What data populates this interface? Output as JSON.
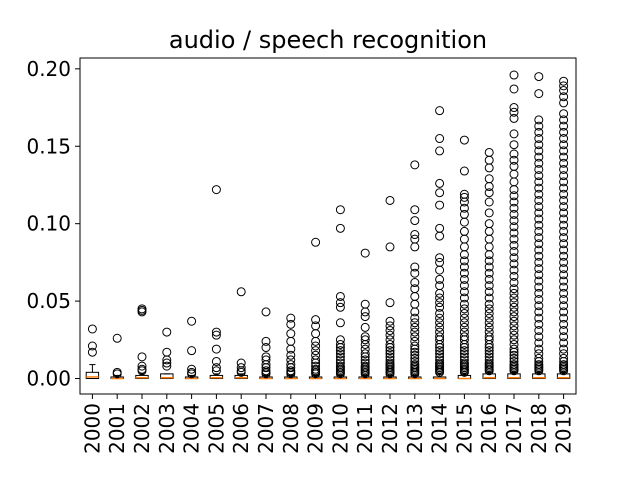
{
  "chart_data": {
    "type": "boxplot",
    "title": "audio / speech recognition",
    "xlabel": "",
    "ylabel": "",
    "ylim": [
      -0.01,
      0.207
    ],
    "y_ticks": [
      0.0,
      0.05,
      0.1,
      0.15,
      0.2
    ],
    "y_tick_labels": [
      "0.00",
      "0.05",
      "0.10",
      "0.15",
      "0.20"
    ],
    "categories": [
      "2000",
      "2001",
      "2002",
      "2003",
      "2004",
      "2005",
      "2006",
      "2007",
      "2008",
      "2009",
      "2010",
      "2011",
      "2012",
      "2013",
      "2014",
      "2015",
      "2016",
      "2017",
      "2018",
      "2019"
    ],
    "median_color": "#ff7f0e",
    "box_color": "#000000",
    "grid": false,
    "boxes": [
      {
        "category": "2000",
        "q1": 0.0,
        "median": 0.001,
        "q3": 0.004,
        "whisker_low": 0.0,
        "whisker_high": 0.009,
        "outliers": [
          0.032,
          0.021,
          0.017
        ]
      },
      {
        "category": "2001",
        "q1": 0.0,
        "median": 0.0,
        "q3": 0.001,
        "whisker_low": 0.0,
        "whisker_high": 0.002,
        "outliers": [
          0.026,
          0.004,
          0.003
        ]
      },
      {
        "category": "2002",
        "q1": 0.0,
        "median": 0.0005,
        "q3": 0.002,
        "whisker_low": 0.0,
        "whisker_high": 0.003,
        "outliers": [
          0.045,
          0.044,
          0.043,
          0.014,
          0.008,
          0.006,
          0.005
        ]
      },
      {
        "category": "2003",
        "q1": 0.0,
        "median": 0.0005,
        "q3": 0.003,
        "whisker_low": 0.0,
        "whisker_high": 0.003,
        "outliers": [
          0.03,
          0.017,
          0.012,
          0.01,
          0.008
        ]
      },
      {
        "category": "2004",
        "q1": 0.0,
        "median": 0.0,
        "q3": 0.001,
        "whisker_low": 0.0,
        "whisker_high": 0.002,
        "outliers": [
          0.037,
          0.018,
          0.006,
          0.004,
          0.003
        ]
      },
      {
        "category": "2005",
        "q1": 0.0,
        "median": 0.0005,
        "q3": 0.002,
        "whisker_low": 0.0,
        "whisker_high": 0.003,
        "outliers": [
          0.122,
          0.03,
          0.028,
          0.019,
          0.011,
          0.007,
          0.005
        ]
      },
      {
        "category": "2006",
        "q1": 0.0,
        "median": 0.0005,
        "q3": 0.002,
        "whisker_low": 0.0,
        "whisker_high": 0.003,
        "outliers": [
          0.056,
          0.01,
          0.007,
          0.005,
          0.004
        ]
      },
      {
        "category": "2007",
        "q1": 0.0,
        "median": 0.0,
        "q3": 0.001,
        "whisker_low": 0.0,
        "whisker_high": 0.002,
        "outliers": [
          0.043,
          0.024,
          0.02,
          0.014,
          0.012,
          0.009,
          0.007,
          0.005,
          0.004,
          0.003
        ]
      },
      {
        "category": "2008",
        "q1": 0.0,
        "median": 0.0,
        "q3": 0.001,
        "whisker_low": 0.0,
        "whisker_high": 0.002,
        "outliers": [
          0.039,
          0.035,
          0.029,
          0.024,
          0.019,
          0.015,
          0.012,
          0.009,
          0.007,
          0.005,
          0.004,
          0.003
        ]
      },
      {
        "category": "2009",
        "q1": 0.0,
        "median": 0.0,
        "q3": 0.001,
        "whisker_low": 0.0,
        "whisker_high": 0.002,
        "outliers": [
          0.088,
          0.038,
          0.034,
          0.029,
          0.024,
          0.021,
          0.018,
          0.015,
          0.012,
          0.01,
          0.008,
          0.006,
          0.005,
          0.004,
          0.003
        ]
      },
      {
        "category": "2010",
        "q1": 0.0,
        "median": 0.0,
        "q3": 0.001,
        "whisker_low": 0.0,
        "whisker_high": 0.002,
        "outliers": [
          0.109,
          0.097,
          0.053,
          0.049,
          0.046,
          0.036,
          0.025,
          0.022,
          0.02,
          0.018,
          0.016,
          0.014,
          0.012,
          0.01,
          0.008,
          0.007,
          0.006,
          0.005,
          0.004,
          0.003
        ]
      },
      {
        "category": "2011",
        "q1": 0.0,
        "median": 0.0,
        "q3": 0.001,
        "whisker_low": 0.0,
        "whisker_high": 0.002,
        "outliers": [
          0.081,
          0.048,
          0.043,
          0.04,
          0.033,
          0.027,
          0.025,
          0.022,
          0.019,
          0.016,
          0.014,
          0.012,
          0.01,
          0.008,
          0.007,
          0.006,
          0.005,
          0.004,
          0.003
        ]
      },
      {
        "category": "2012",
        "q1": 0.0,
        "median": 0.0,
        "q3": 0.001,
        "whisker_low": 0.0,
        "whisker_high": 0.002,
        "outliers": [
          0.115,
          0.085,
          0.049,
          0.037,
          0.034,
          0.031,
          0.028,
          0.025,
          0.022,
          0.02,
          0.018,
          0.016,
          0.014,
          0.012,
          0.01,
          0.009,
          0.008,
          0.007,
          0.006,
          0.005,
          0.004,
          0.003
        ]
      },
      {
        "category": "2013",
        "q1": 0.0,
        "median": 0.0,
        "q3": 0.001,
        "whisker_low": 0.0,
        "whisker_high": 0.002,
        "outliers": [
          0.138,
          0.109,
          0.102,
          0.093,
          0.09,
          0.085,
          0.072,
          0.068,
          0.062,
          0.058,
          0.053,
          0.048,
          0.043,
          0.039,
          0.036,
          0.033,
          0.03,
          0.027,
          0.024,
          0.021,
          0.019,
          0.017,
          0.015,
          0.013,
          0.011,
          0.009,
          0.008,
          0.007,
          0.006,
          0.005,
          0.004,
          0.003
        ]
      },
      {
        "category": "2014",
        "q1": 0.0,
        "median": 0.0,
        "q3": 0.001,
        "whisker_low": 0.0,
        "whisker_high": 0.003,
        "outliers": [
          0.173,
          0.155,
          0.147,
          0.126,
          0.12,
          0.112,
          0.097,
          0.092,
          0.078,
          0.075,
          0.07,
          0.064,
          0.06,
          0.055,
          0.052,
          0.049,
          0.046,
          0.042,
          0.039,
          0.036,
          0.033,
          0.03,
          0.027,
          0.025,
          0.022,
          0.02,
          0.018,
          0.016,
          0.014,
          0.012,
          0.01,
          0.009,
          0.008,
          0.007,
          0.006,
          0.005,
          0.004
        ]
      },
      {
        "category": "2015",
        "q1": 0.0,
        "median": 0.0,
        "q3": 0.002,
        "whisker_low": 0.0,
        "whisker_high": 0.003,
        "outliers": [
          0.154,
          0.134,
          0.119,
          0.117,
          0.114,
          0.11,
          0.106,
          0.101,
          0.095,
          0.09,
          0.085,
          0.08,
          0.076,
          0.072,
          0.068,
          0.064,
          0.06,
          0.056,
          0.052,
          0.048,
          0.045,
          0.042,
          0.039,
          0.036,
          0.033,
          0.03,
          0.027,
          0.025,
          0.022,
          0.02,
          0.018,
          0.016,
          0.014,
          0.012,
          0.01,
          0.009,
          0.008,
          0.007,
          0.006,
          0.005,
          0.004
        ]
      },
      {
        "category": "2016",
        "q1": 0.0,
        "median": 0.0005,
        "q3": 0.003,
        "whisker_low": 0.0,
        "whisker_high": 0.004,
        "outliers": [
          0.146,
          0.141,
          0.136,
          0.129,
          0.124,
          0.12,
          0.114,
          0.107,
          0.1,
          0.095,
          0.09,
          0.085,
          0.08,
          0.076,
          0.072,
          0.068,
          0.064,
          0.06,
          0.056,
          0.052,
          0.048,
          0.045,
          0.042,
          0.039,
          0.036,
          0.033,
          0.03,
          0.027,
          0.025,
          0.022,
          0.02,
          0.018,
          0.016,
          0.014,
          0.012,
          0.01,
          0.009,
          0.008,
          0.007,
          0.006,
          0.005
        ]
      },
      {
        "category": "2017",
        "q1": 0.0,
        "median": 0.0005,
        "q3": 0.003,
        "whisker_low": 0.0,
        "whisker_high": 0.004,
        "outliers": [
          0.196,
          0.187,
          0.175,
          0.172,
          0.168,
          0.158,
          0.151,
          0.145,
          0.141,
          0.137,
          0.132,
          0.127,
          0.122,
          0.118,
          0.114,
          0.11,
          0.106,
          0.102,
          0.098,
          0.094,
          0.09,
          0.086,
          0.082,
          0.078,
          0.074,
          0.07,
          0.066,
          0.062,
          0.058,
          0.055,
          0.052,
          0.049,
          0.046,
          0.043,
          0.04,
          0.037,
          0.034,
          0.031,
          0.028,
          0.025,
          0.022,
          0.019,
          0.017,
          0.015,
          0.013,
          0.011,
          0.009,
          0.008,
          0.007,
          0.006,
          0.005
        ]
      },
      {
        "category": "2018",
        "q1": 0.0,
        "median": 0.0005,
        "q3": 0.003,
        "whisker_low": 0.0,
        "whisker_high": 0.004,
        "outliers": [
          0.195,
          0.184,
          0.167,
          0.163,
          0.159,
          0.155,
          0.151,
          0.147,
          0.143,
          0.139,
          0.135,
          0.131,
          0.127,
          0.123,
          0.119,
          0.115,
          0.111,
          0.107,
          0.103,
          0.099,
          0.095,
          0.091,
          0.087,
          0.083,
          0.079,
          0.075,
          0.071,
          0.067,
          0.063,
          0.059,
          0.055,
          0.051,
          0.047,
          0.043,
          0.039,
          0.035,
          0.031,
          0.027,
          0.023,
          0.019,
          0.016,
          0.013,
          0.011,
          0.009,
          0.008,
          0.007,
          0.006,
          0.005
        ]
      },
      {
        "category": "2019",
        "q1": 0.0,
        "median": 0.0005,
        "q3": 0.003,
        "whisker_low": 0.0,
        "whisker_high": 0.004,
        "outliers": [
          0.192,
          0.189,
          0.186,
          0.182,
          0.178,
          0.171,
          0.167,
          0.163,
          0.159,
          0.155,
          0.151,
          0.147,
          0.143,
          0.139,
          0.135,
          0.131,
          0.127,
          0.123,
          0.119,
          0.115,
          0.111,
          0.107,
          0.103,
          0.099,
          0.095,
          0.091,
          0.087,
          0.083,
          0.079,
          0.075,
          0.071,
          0.067,
          0.063,
          0.059,
          0.055,
          0.051,
          0.047,
          0.043,
          0.039,
          0.035,
          0.031,
          0.027,
          0.023,
          0.019,
          0.016,
          0.013,
          0.011,
          0.009,
          0.008,
          0.007,
          0.006,
          0.005
        ]
      }
    ]
  }
}
